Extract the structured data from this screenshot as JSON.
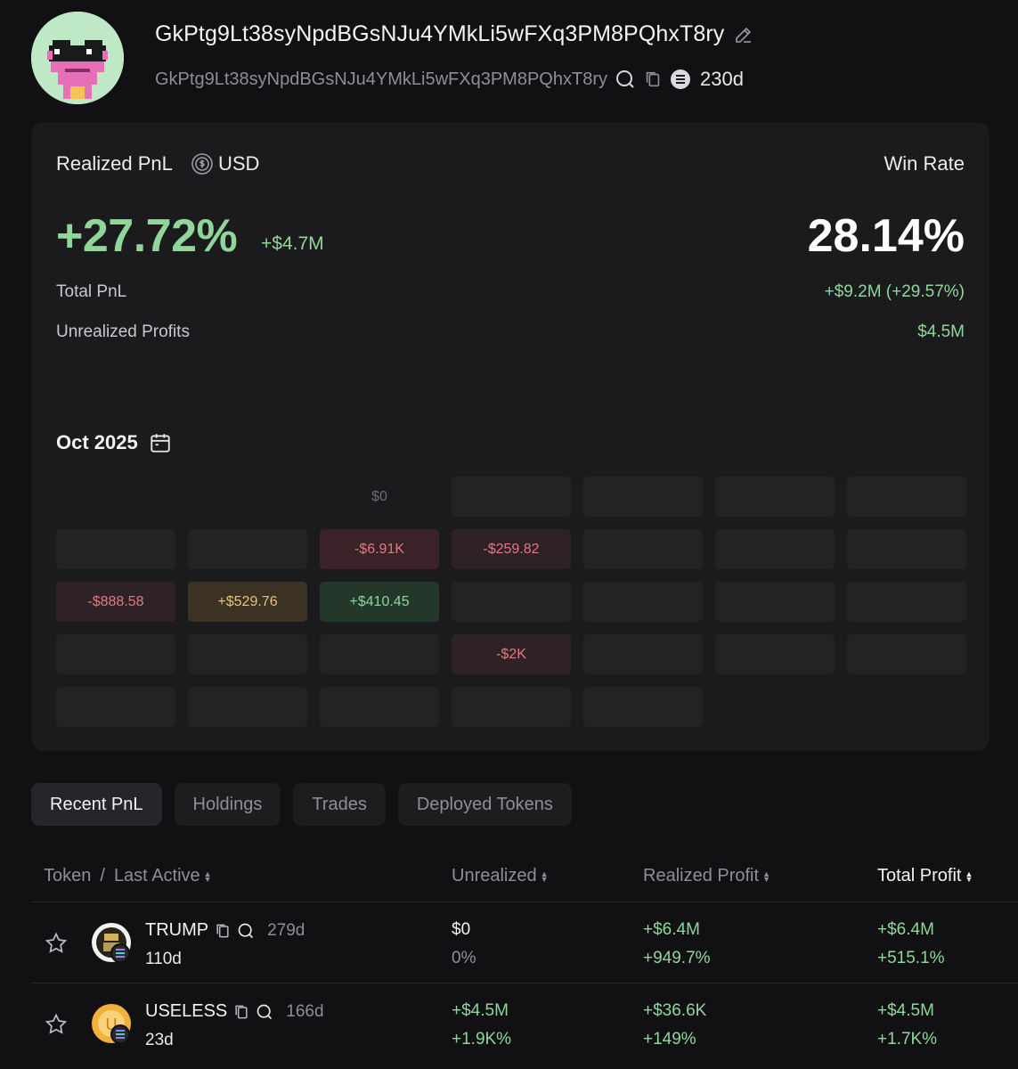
{
  "header": {
    "wallet_name": "GkPtg9Lt38syNpdBGsNJu4YMkLi5wFXq3PM8PQhxT8ry",
    "wallet_address": "GkPtg9Lt38syNpdBGsNJu4YMkLi5wFXq3PM8PQhxT8ry",
    "age": "230d"
  },
  "stats": {
    "realized_label": "Realized PnL",
    "currency": "USD",
    "winrate_label": "Win Rate",
    "realized_pct": "+27.72%",
    "realized_usd": "+$4.7M",
    "winrate": "28.14%",
    "total_pnl_label": "Total PnL",
    "total_pnl_value": "+$9.2M (+29.57%)",
    "unrealized_label": "Unrealized Profits",
    "unrealized_value": "$4.5M"
  },
  "calendar": {
    "month": "Oct 2025",
    "rows": [
      [
        {
          "t": "",
          "k": "blank"
        },
        {
          "t": "",
          "k": "blank"
        },
        {
          "t": "$0",
          "k": "zero"
        },
        {
          "t": "",
          "k": "empty"
        },
        {
          "t": "",
          "k": "empty"
        },
        {
          "t": "",
          "k": "empty"
        },
        {
          "t": "",
          "k": "empty"
        }
      ],
      [
        {
          "t": "",
          "k": "empty"
        },
        {
          "t": "",
          "k": "empty"
        },
        {
          "t": "-$6.91K",
          "k": "loss"
        },
        {
          "t": "-$259.82",
          "k": "loss2"
        },
        {
          "t": "",
          "k": "empty"
        },
        {
          "t": "",
          "k": "empty"
        },
        {
          "t": "",
          "k": "empty"
        }
      ],
      [
        {
          "t": "-$888.58",
          "k": "loss2"
        },
        {
          "t": "+$529.76",
          "k": "warn"
        },
        {
          "t": "+$410.45",
          "k": "gain"
        },
        {
          "t": "",
          "k": "empty"
        },
        {
          "t": "",
          "k": "empty"
        },
        {
          "t": "",
          "k": "empty"
        },
        {
          "t": "",
          "k": "empty"
        }
      ],
      [
        {
          "t": "",
          "k": "empty"
        },
        {
          "t": "",
          "k": "empty"
        },
        {
          "t": "",
          "k": "empty"
        },
        {
          "t": "-$2K",
          "k": "loss2"
        },
        {
          "t": "",
          "k": "empty"
        },
        {
          "t": "",
          "k": "empty"
        },
        {
          "t": "",
          "k": "empty"
        }
      ],
      [
        {
          "t": "",
          "k": "empty"
        },
        {
          "t": "",
          "k": "empty"
        },
        {
          "t": "",
          "k": "empty"
        },
        {
          "t": "",
          "k": "empty"
        },
        {
          "t": "",
          "k": "empty"
        },
        {
          "t": "",
          "k": "blank"
        },
        {
          "t": "",
          "k": "blank"
        }
      ]
    ]
  },
  "tabs": [
    "Recent PnL",
    "Holdings",
    "Trades",
    "Deployed Tokens"
  ],
  "table": {
    "col_token": "Token",
    "col_sep": "/",
    "col_last_active": "Last Active",
    "col_unrealized": "Unrealized",
    "col_realized": "Realized Profit",
    "col_total": "Total Profit",
    "rows": [
      {
        "name": "TRUMP",
        "age": "279d",
        "last_active": "110d",
        "unrealized": "$0",
        "unrealized_pct": "0%",
        "realized": "+$6.4M",
        "realized_pct": "+949.7%",
        "total": "+$6.4M",
        "total_pct": "+515.1%",
        "icon": "trump-token-icon"
      },
      {
        "name": "USELESS",
        "age": "166d",
        "last_active": "23d",
        "unrealized": "+$4.5M",
        "unrealized_pct": "+1.9K%",
        "realized": "+$36.6K",
        "realized_pct": "+149%",
        "total": "+$4.5M",
        "total_pct": "+1.7K%",
        "icon": "useless-token-icon"
      }
    ]
  },
  "colors": {
    "background": "#111113",
    "card": "#1b1b1e",
    "positive": "#8fd69a",
    "negative": "#e07a82",
    "warning": "#eac27a"
  }
}
